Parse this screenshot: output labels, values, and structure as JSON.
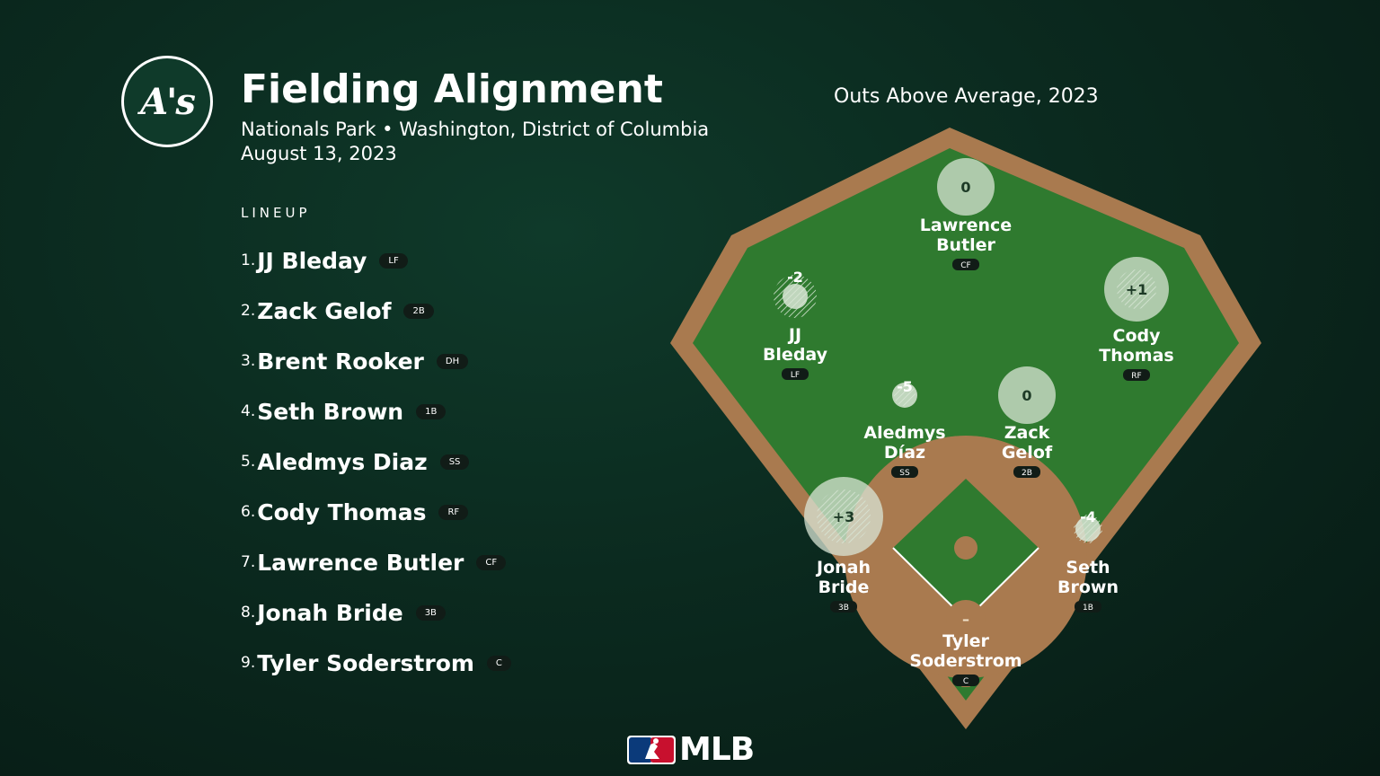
{
  "header": {
    "logo_text": "A's",
    "title": "Fielding Alignment",
    "subtitle": "Nationals Park • Washington, District of Columbia",
    "date": "August 13, 2023",
    "oaa_title": "Outs Above Average, 2023"
  },
  "lineup": {
    "label": "LINEUP",
    "players": [
      {
        "num": "1.",
        "name": "JJ Bleday",
        "pos": "LF"
      },
      {
        "num": "2.",
        "name": "Zack Gelof",
        "pos": "2B"
      },
      {
        "num": "3.",
        "name": "Brent Rooker",
        "pos": "DH"
      },
      {
        "num": "4.",
        "name": "Seth Brown",
        "pos": "1B"
      },
      {
        "num": "5.",
        "name": "Aledmys Diaz",
        "pos": "SS"
      },
      {
        "num": "6.",
        "name": "Cody Thomas",
        "pos": "RF"
      },
      {
        "num": "7.",
        "name": "Lawrence Butler",
        "pos": "CF"
      },
      {
        "num": "8.",
        "name": "Jonah Bride",
        "pos": "3B"
      },
      {
        "num": "9.",
        "name": "Tyler Soderstrom",
        "pos": "C"
      }
    ]
  },
  "fielders": [
    {
      "first": "Lawrence",
      "last": "Butler",
      "pos": "CF",
      "oaa": "0",
      "oaa_value": 0
    },
    {
      "first": "JJ",
      "last": "Bleday",
      "pos": "LF",
      "oaa": "-2",
      "oaa_value": -2
    },
    {
      "first": "Cody",
      "last": "Thomas",
      "pos": "RF",
      "oaa": "+1",
      "oaa_value": 1
    },
    {
      "first": "Aledmys",
      "last": "Díaz",
      "pos": "SS",
      "oaa": "-5",
      "oaa_value": -5
    },
    {
      "first": "Zack",
      "last": "Gelof",
      "pos": "2B",
      "oaa": "0",
      "oaa_value": 0
    },
    {
      "first": "Jonah",
      "last": "Bride",
      "pos": "3B",
      "oaa": "+3",
      "oaa_value": 3
    },
    {
      "first": "Seth",
      "last": "Brown",
      "pos": "1B",
      "oaa": "-4",
      "oaa_value": -4
    },
    {
      "first": "Tyler",
      "last": "Soderstrom",
      "pos": "C",
      "oaa": "–",
      "oaa_value": null
    }
  ],
  "footer": {
    "brand": "MLB"
  },
  "colors": {
    "grass": "#2f7a2f",
    "dirt": "#a97a4f",
    "background": "#0b2a1f",
    "bubble": "#d9e6d6"
  }
}
